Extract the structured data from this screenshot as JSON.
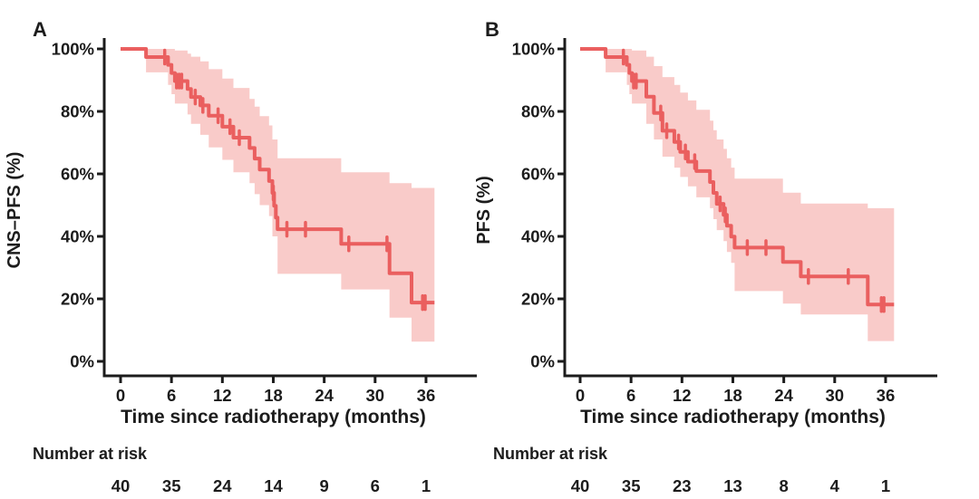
{
  "figure_title": "",
  "chart_data": [
    {
      "type": "line",
      "subtype": "kaplan_meier_step",
      "panel_label": "A",
      "xlabel": "Time since radiotherapy (months)",
      "ylabel": "CNS–PFS (%)",
      "xlim": [
        0,
        42
      ],
      "ylim": [
        0,
        100
      ],
      "xticks": [
        0,
        6,
        12,
        18,
        24,
        30,
        36
      ],
      "ytick_labels": [
        "0%",
        "20%",
        "40%",
        "60%",
        "80%",
        "100%"
      ],
      "grid": false,
      "legend": "none",
      "line_color": "#ea5f5f",
      "band_color": "#f9cbc9",
      "axis_color": "#1c1c1c",
      "survival_steps": [
        [
          0,
          3.0,
          100
        ],
        [
          3.0,
          5.6,
          97.4
        ],
        [
          5.6,
          6.0,
          94.9
        ],
        [
          6.0,
          6.4,
          92.3
        ],
        [
          6.4,
          7.9,
          89.7
        ],
        [
          7.9,
          8.3,
          87.2
        ],
        [
          8.3,
          9.4,
          84.6
        ],
        [
          9.4,
          10.4,
          81.9
        ],
        [
          10.4,
          12.0,
          78.6
        ],
        [
          12.0,
          13.3,
          75.1
        ],
        [
          13.3,
          15.2,
          71.6
        ],
        [
          15.2,
          15.8,
          68.3
        ],
        [
          15.8,
          16.4,
          64.9
        ],
        [
          16.4,
          17.5,
          61.4
        ],
        [
          17.5,
          17.9,
          57.7
        ],
        [
          17.9,
          18.1,
          53.9
        ],
        [
          18.1,
          18.3,
          49.8
        ],
        [
          18.3,
          18.5,
          46.0
        ],
        [
          18.5,
          26.0,
          42.3
        ],
        [
          26.0,
          31.7,
          37.6
        ],
        [
          31.7,
          34.3,
          28.2
        ],
        [
          34.3,
          37.0,
          18.8
        ]
      ],
      "ci_segments": [
        [
          3.0,
          5.6,
          100,
          92.5
        ],
        [
          5.6,
          6.0,
          100,
          88.5
        ],
        [
          6.0,
          6.4,
          100,
          85.5
        ],
        [
          6.4,
          7.9,
          99.5,
          82.5
        ],
        [
          7.9,
          8.3,
          98.5,
          79.0
        ],
        [
          8.3,
          9.4,
          97.5,
          76.0
        ],
        [
          9.4,
          10.4,
          96.0,
          72.5
        ],
        [
          10.4,
          12.0,
          93.5,
          68.5
        ],
        [
          12.0,
          13.3,
          90.5,
          64.5
        ],
        [
          13.3,
          15.2,
          87.5,
          60.5
        ],
        [
          15.2,
          15.8,
          84.0,
          57.0
        ],
        [
          15.8,
          16.4,
          81.5,
          53.5
        ],
        [
          16.4,
          17.5,
          78.5,
          50.0
        ],
        [
          17.5,
          17.9,
          75.5,
          46.5
        ],
        [
          17.9,
          18.5,
          71.0,
          40.0
        ],
        [
          18.5,
          26.0,
          65.0,
          28.0
        ],
        [
          26.0,
          31.7,
          60.5,
          23.0
        ],
        [
          31.7,
          34.3,
          57.0,
          14.0
        ],
        [
          34.3,
          37.0,
          55.5,
          6.3
        ]
      ],
      "censor_marks": [
        [
          5.2,
          97.4
        ],
        [
          6.6,
          89.7
        ],
        [
          6.9,
          89.7
        ],
        [
          7.2,
          89.7
        ],
        [
          8.8,
          84.6
        ],
        [
          9.7,
          81.9
        ],
        [
          11.5,
          78.6
        ],
        [
          12.9,
          75.1
        ],
        [
          14.0,
          71.6
        ],
        [
          18.0,
          53.9
        ],
        [
          19.6,
          42.3
        ],
        [
          21.8,
          42.3
        ],
        [
          26.9,
          37.6
        ],
        [
          31.4,
          37.6
        ],
        [
          35.6,
          18.8
        ],
        [
          35.9,
          18.8
        ]
      ],
      "risk_table": {
        "label": "Number at risk",
        "times": [
          0,
          6,
          12,
          18,
          24,
          30,
          36
        ],
        "counts": [
          40,
          35,
          24,
          14,
          9,
          6,
          1
        ]
      }
    },
    {
      "type": "line",
      "subtype": "kaplan_meier_step",
      "panel_label": "B",
      "xlabel": "Time since radiotherapy (months)",
      "ylabel": "PFS (%)",
      "xlim": [
        0,
        42
      ],
      "ylim": [
        0,
        100
      ],
      "xticks": [
        0,
        6,
        12,
        18,
        24,
        30,
        36
      ],
      "ytick_labels": [
        "0%",
        "20%",
        "40%",
        "60%",
        "80%",
        "100%"
      ],
      "grid": false,
      "legend": "none",
      "line_color": "#ea5f5f",
      "band_color": "#f9cbc9",
      "axis_color": "#1c1c1c",
      "survival_steps": [
        [
          0,
          3.0,
          100
        ],
        [
          3.0,
          5.5,
          97.4
        ],
        [
          5.5,
          5.8,
          94.9
        ],
        [
          5.8,
          6.1,
          92.3
        ],
        [
          6.1,
          7.8,
          89.7
        ],
        [
          7.8,
          8.7,
          84.7
        ],
        [
          8.7,
          9.7,
          79.5
        ],
        [
          9.7,
          11.1,
          73.8
        ],
        [
          11.1,
          11.8,
          70.2
        ],
        [
          11.8,
          12.7,
          67.0
        ],
        [
          12.7,
          13.7,
          63.9
        ],
        [
          13.7,
          15.3,
          60.9
        ],
        [
          15.3,
          15.7,
          57.4
        ],
        [
          15.7,
          16.1,
          53.9
        ],
        [
          16.1,
          16.9,
          50.4
        ],
        [
          16.9,
          17.3,
          46.9
        ],
        [
          17.3,
          17.8,
          43.4
        ],
        [
          17.8,
          18.2,
          39.9
        ],
        [
          18.2,
          23.9,
          36.4
        ],
        [
          23.9,
          26.0,
          31.8
        ],
        [
          26.0,
          33.9,
          27.2
        ],
        [
          33.9,
          37.0,
          18.2
        ]
      ],
      "ci_segments": [
        [
          3.0,
          5.5,
          100,
          92.5
        ],
        [
          5.5,
          5.8,
          100,
          88.5
        ],
        [
          5.8,
          6.1,
          100,
          85.5
        ],
        [
          6.1,
          7.8,
          99.5,
          82.5
        ],
        [
          7.8,
          8.7,
          97.5,
          76.0
        ],
        [
          8.7,
          9.7,
          94.5,
          71.0
        ],
        [
          9.7,
          11.1,
          91.0,
          65.5
        ],
        [
          11.1,
          11.8,
          88.5,
          62.0
        ],
        [
          11.8,
          12.7,
          86.0,
          59.0
        ],
        [
          12.7,
          13.7,
          83.5,
          56.0
        ],
        [
          13.7,
          15.3,
          80.5,
          52.5
        ],
        [
          15.3,
          15.7,
          77.0,
          49.0
        ],
        [
          15.7,
          16.1,
          74.0,
          45.5
        ],
        [
          16.1,
          16.9,
          71.0,
          42.0
        ],
        [
          16.9,
          17.3,
          68.0,
          38.5
        ],
        [
          17.3,
          17.8,
          65.0,
          35.0
        ],
        [
          17.8,
          18.2,
          62.0,
          31.5
        ],
        [
          18.2,
          23.9,
          58.5,
          22.5
        ],
        [
          23.9,
          26.0,
          54.0,
          18.5
        ],
        [
          26.0,
          33.9,
          50.5,
          15.0
        ],
        [
          33.9,
          37.0,
          49.0,
          6.5
        ]
      ],
      "censor_marks": [
        [
          5.1,
          97.4
        ],
        [
          6.3,
          89.7
        ],
        [
          6.6,
          89.7
        ],
        [
          9.5,
          79.5
        ],
        [
          10.2,
          73.8
        ],
        [
          11.6,
          70.2
        ],
        [
          12.4,
          67.0
        ],
        [
          13.5,
          63.9
        ],
        [
          16.5,
          50.4
        ],
        [
          17.1,
          46.9
        ],
        [
          19.7,
          36.4
        ],
        [
          21.9,
          36.4
        ],
        [
          26.9,
          27.2
        ],
        [
          31.6,
          27.2
        ],
        [
          35.5,
          18.2
        ],
        [
          35.8,
          18.2
        ]
      ],
      "risk_table": {
        "label": "Number at risk",
        "times": [
          0,
          6,
          12,
          18,
          24,
          30,
          36
        ],
        "counts": [
          40,
          35,
          23,
          13,
          8,
          4,
          1
        ]
      }
    }
  ]
}
